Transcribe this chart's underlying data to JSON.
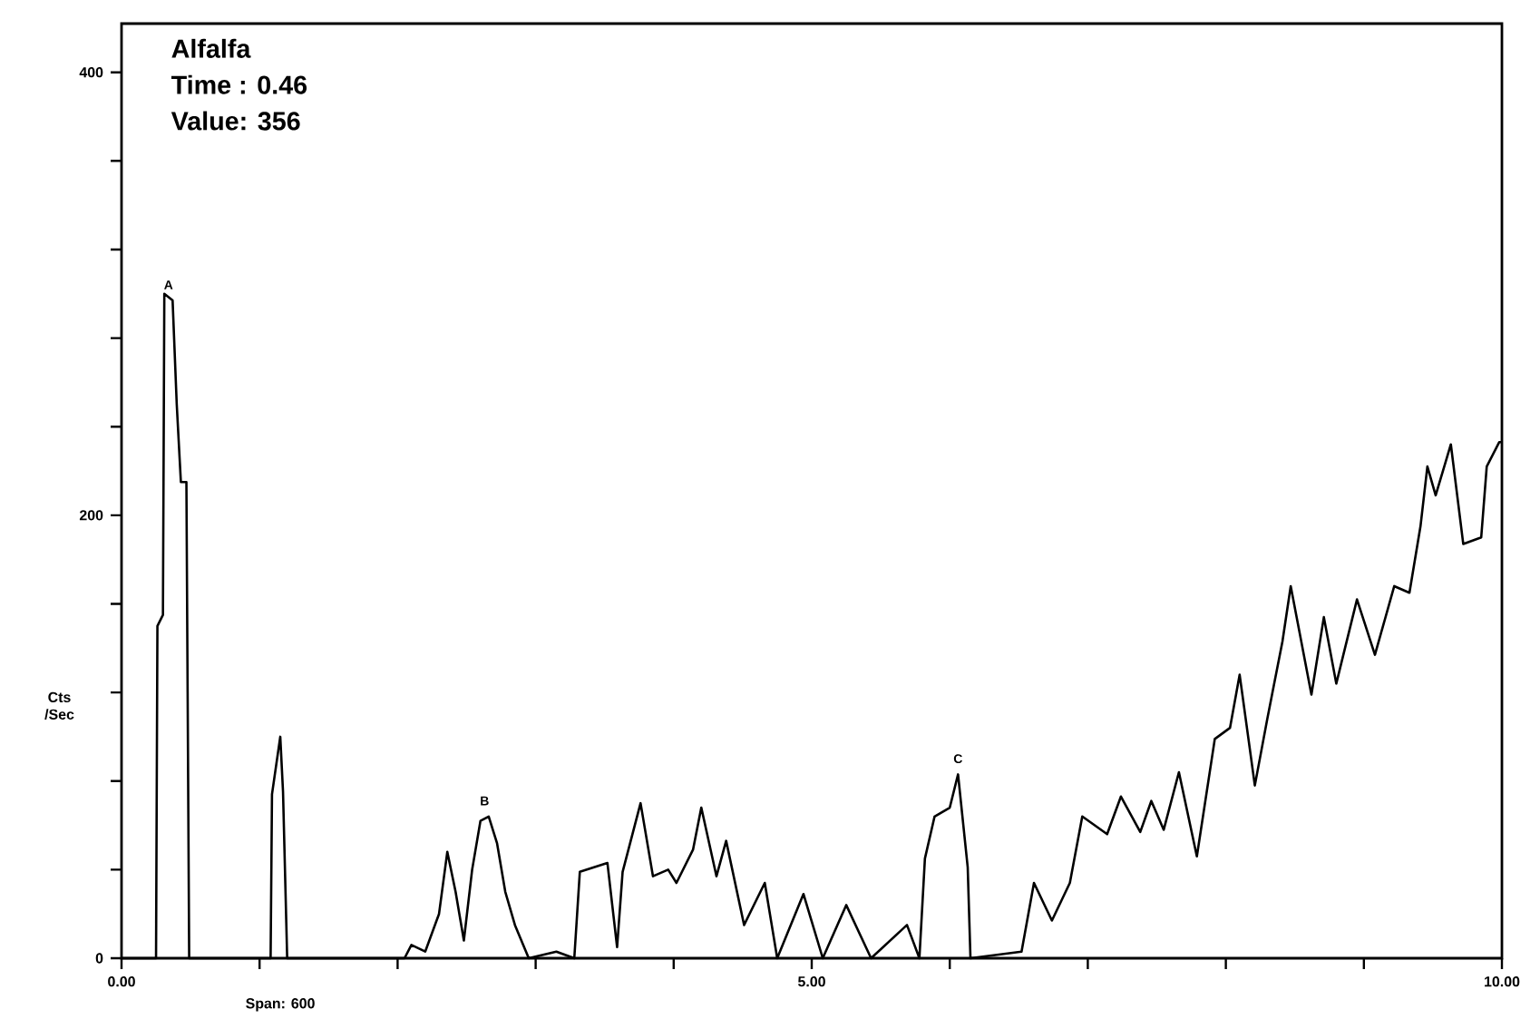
{
  "chart_data": {
    "type": "line",
    "title": "Alfalfa",
    "ylabel": "Cts /Sec",
    "annotations": [
      "Time : 0.46",
      "Value: 356",
      "Span: 600",
      {
        "text": "A",
        "x": 0.34,
        "y": 297
      },
      {
        "text": "B",
        "x": 2.63,
        "y": 64
      },
      {
        "text": "C",
        "x": 6.06,
        "y": 83
      }
    ],
    "series": [
      {
        "color": "#000000",
        "x": [
          0,
          0.25,
          0.26,
          0.3,
          0.31,
          0.37,
          0.4,
          0.43,
          0.47,
          0.49,
          1.08,
          1.09,
          1.15,
          1.17,
          1.2,
          2.05,
          2.1,
          2.2,
          2.3,
          2.36,
          2.42,
          2.48,
          2.54,
          2.6,
          2.66,
          2.72,
          2.78,
          2.85,
          2.95,
          3.15,
          3.28,
          3.32,
          3.52,
          3.59,
          3.63,
          3.76,
          3.85,
          3.96,
          4.02,
          4.14,
          4.2,
          4.31,
          4.38,
          4.51,
          4.66,
          4.75,
          4.94,
          5.08,
          5.25,
          5.43,
          5.69,
          5.78,
          5.82,
          5.89,
          6.0,
          6.06,
          6.13,
          6.15,
          6.52,
          6.61,
          6.74,
          6.87,
          6.96,
          7.14,
          7.24,
          7.38,
          7.46,
          7.55,
          7.66,
          7.79,
          7.92,
          8.03,
          8.1,
          8.21,
          8.3,
          8.41,
          8.47,
          8.62,
          8.71,
          8.8,
          8.95,
          9.08,
          9.22,
          9.33,
          9.41,
          9.46,
          9.52,
          9.63,
          9.72,
          9.85,
          9.89,
          9.98,
          10.0
        ],
        "values": [
          0,
          0,
          150,
          155,
          300,
          297,
          250,
          215,
          215,
          0,
          0,
          74,
          100,
          75,
          0,
          0,
          6,
          3,
          20,
          48,
          30,
          8,
          40,
          62,
          64,
          52,
          30,
          15,
          0,
          3,
          0,
          39,
          43,
          5,
          39,
          70,
          37,
          40,
          34,
          49,
          68,
          37,
          53,
          15,
          34,
          0,
          29,
          0,
          24,
          0,
          15,
          0,
          45,
          64,
          68,
          83,
          41,
          0,
          3,
          34,
          17,
          34,
          64,
          56,
          73,
          57,
          71,
          58,
          84,
          46,
          99,
          104,
          128,
          78,
          108,
          143,
          168,
          119,
          154,
          124,
          162,
          137,
          168,
          165,
          195,
          222,
          209,
          232,
          187,
          190,
          222,
          233,
          233
        ]
      }
    ],
    "xlim": [
      0,
      10
    ],
    "ylim": [
      0,
      422
    ],
    "xticks": [
      {
        "value": 0,
        "label": "0.00"
      },
      {
        "value": 1,
        "label": null
      },
      {
        "value": 2,
        "label": null
      },
      {
        "value": 3,
        "label": null
      },
      {
        "value": 4,
        "label": null
      },
      {
        "value": 5,
        "label": "5.00"
      },
      {
        "value": 6,
        "label": null
      },
      {
        "value": 7,
        "label": null
      },
      {
        "value": 8,
        "label": null
      },
      {
        "value": 9,
        "label": null
      },
      {
        "value": 10,
        "label": "10.00"
      }
    ],
    "yticks": [
      0,
      {
        "value": 40,
        "label": null
      },
      {
        "value": 80,
        "label": null
      },
      {
        "value": 120,
        "label": null
      },
      {
        "value": 160,
        "label": null
      },
      200,
      {
        "value": 240,
        "label": null
      },
      {
        "value": 280,
        "label": null
      },
      {
        "value": 320,
        "label": null
      },
      {
        "value": 360,
        "label": null
      },
      400
    ],
    "grid": false,
    "legend": false,
    "marker": "none",
    "line_style": "solid"
  }
}
